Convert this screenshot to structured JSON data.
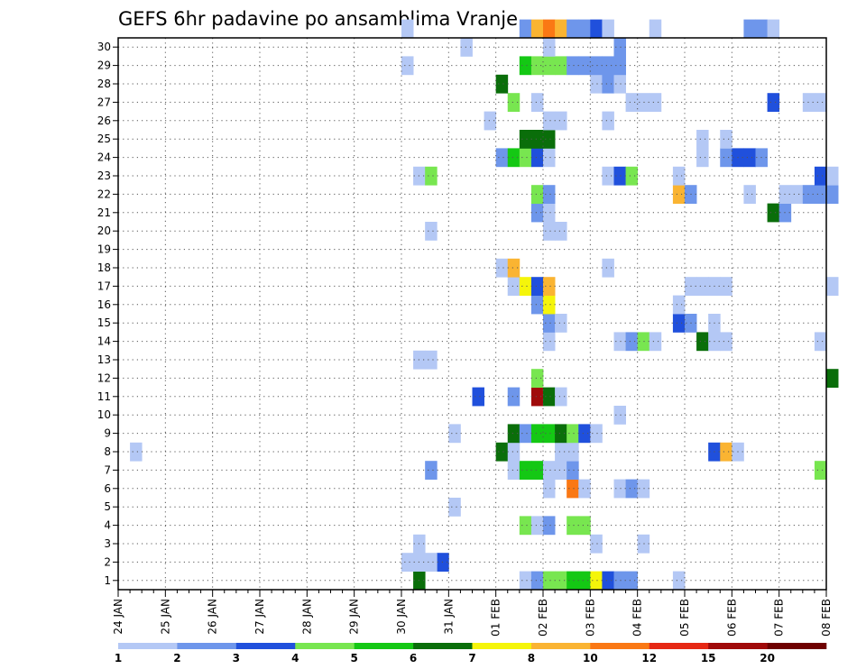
{
  "chart_data": {
    "type": "heatmap",
    "title": "GEFS 6hr padavine po ansamblima Vranje",
    "x_tick_labels": [
      "24 JAN",
      "25 JAN",
      "26 JAN",
      "27 JAN",
      "28 JAN",
      "29 JAN",
      "30 JAN",
      "31 JAN",
      "01 FEB",
      "02 FEB",
      "03 FEB",
      "04 FEB",
      "05 FEB",
      "06 FEB",
      "07 FEB",
      "08 FEB"
    ],
    "x_range_steps": [
      0,
      60
    ],
    "steps_per_day": 4,
    "y_tick_labels": [
      "1",
      "2",
      "3",
      "4",
      "5",
      "6",
      "7",
      "8",
      "9",
      "10",
      "11",
      "12",
      "13",
      "14",
      "15",
      "16",
      "17",
      "18",
      "19",
      "20",
      "21",
      "22",
      "23",
      "24",
      "25",
      "26",
      "27",
      "28",
      "29",
      "30"
    ],
    "y_range_members": [
      0,
      30
    ],
    "grid": true,
    "colorbar": {
      "placement": "bottom",
      "labels": [
        "1",
        "2",
        "3",
        "4",
        "5",
        "6",
        "7",
        "8",
        "10",
        "12",
        "15",
        "20"
      ],
      "colors": [
        "#b4c8f5",
        "#6e96eb",
        "#2050dc",
        "#78e650",
        "#14c814",
        "#0a6e0a",
        "#f5f50a",
        "#fab432",
        "#fa7814",
        "#e62814",
        "#a00a0a",
        "#6e0000"
      ]
    },
    "cells": [
      [
        34,
        0,
        0
      ],
      [
        35,
        0,
        1
      ],
      [
        36,
        0,
        3
      ],
      [
        37,
        0,
        3
      ],
      [
        38,
        0,
        4
      ],
      [
        39,
        0,
        4
      ],
      [
        40,
        0,
        6
      ],
      [
        41,
        0,
        2
      ],
      [
        42,
        0,
        1
      ],
      [
        43,
        0,
        1
      ],
      [
        47,
        0,
        0
      ],
      [
        25,
        0,
        5
      ],
      [
        24,
        1,
        0
      ],
      [
        25,
        1,
        0
      ],
      [
        27,
        1,
        2
      ],
      [
        26,
        1,
        0
      ],
      [
        25,
        2,
        0
      ],
      [
        40,
        2,
        0
      ],
      [
        44,
        2,
        0
      ],
      [
        34,
        3,
        3
      ],
      [
        35,
        3,
        0
      ],
      [
        36,
        3,
        1
      ],
      [
        38,
        3,
        3
      ],
      [
        39,
        3,
        3
      ],
      [
        28,
        4,
        0
      ],
      [
        36,
        5,
        0
      ],
      [
        38,
        5,
        8
      ],
      [
        39,
        5,
        0
      ],
      [
        42,
        5,
        0
      ],
      [
        43,
        5,
        1
      ],
      [
        44,
        5,
        0
      ],
      [
        26,
        6,
        1
      ],
      [
        33,
        6,
        0
      ],
      [
        34,
        6,
        4
      ],
      [
        35,
        6,
        4
      ],
      [
        36,
        6,
        0
      ],
      [
        37,
        6,
        0
      ],
      [
        38,
        6,
        1
      ],
      [
        59,
        6,
        3
      ],
      [
        1,
        7,
        0
      ],
      [
        32,
        7,
        5
      ],
      [
        33,
        7,
        0
      ],
      [
        37,
        7,
        0
      ],
      [
        38,
        7,
        0
      ],
      [
        50,
        7,
        2
      ],
      [
        51,
        7,
        7
      ],
      [
        52,
        7,
        0
      ],
      [
        28,
        8,
        0
      ],
      [
        33,
        8,
        5
      ],
      [
        34,
        8,
        1
      ],
      [
        35,
        8,
        4
      ],
      [
        36,
        8,
        4
      ],
      [
        37,
        8,
        5
      ],
      [
        38,
        8,
        3
      ],
      [
        39,
        8,
        2
      ],
      [
        40,
        8,
        0
      ],
      [
        42,
        9,
        0
      ],
      [
        30,
        10,
        2
      ],
      [
        33,
        10,
        1
      ],
      [
        35,
        10,
        10
      ],
      [
        36,
        10,
        5
      ],
      [
        37,
        10,
        0
      ],
      [
        35,
        11,
        3
      ],
      [
        60,
        11,
        5
      ],
      [
        25,
        12,
        0
      ],
      [
        26,
        12,
        0
      ],
      [
        36,
        13,
        0
      ],
      [
        42,
        13,
        0
      ],
      [
        43,
        13,
        1
      ],
      [
        44,
        13,
        3
      ],
      [
        45,
        13,
        0
      ],
      [
        49,
        13,
        5
      ],
      [
        50,
        13,
        0
      ],
      [
        51,
        13,
        0
      ],
      [
        59,
        13,
        0
      ],
      [
        36,
        14,
        1
      ],
      [
        37,
        14,
        0
      ],
      [
        47,
        14,
        2
      ],
      [
        48,
        14,
        1
      ],
      [
        50,
        14,
        0
      ],
      [
        35,
        15,
        1
      ],
      [
        36,
        15,
        6
      ],
      [
        47,
        15,
        0
      ],
      [
        33,
        16,
        0
      ],
      [
        34,
        16,
        6
      ],
      [
        35,
        16,
        2
      ],
      [
        36,
        16,
        7
      ],
      [
        48,
        16,
        0
      ],
      [
        49,
        16,
        0
      ],
      [
        50,
        16,
        0
      ],
      [
        51,
        16,
        0
      ],
      [
        60,
        16,
        0
      ],
      [
        32,
        17,
        0
      ],
      [
        33,
        17,
        7
      ],
      [
        41,
        17,
        0
      ],
      [
        26,
        19,
        0
      ],
      [
        36,
        19,
        0
      ],
      [
        37,
        19,
        0
      ],
      [
        35,
        20,
        1
      ],
      [
        36,
        20,
        0
      ],
      [
        55,
        20,
        5
      ],
      [
        56,
        20,
        1
      ],
      [
        35,
        21,
        3
      ],
      [
        36,
        21,
        1
      ],
      [
        47,
        21,
        7
      ],
      [
        48,
        21,
        1
      ],
      [
        53,
        21,
        0
      ],
      [
        56,
        21,
        0
      ],
      [
        57,
        21,
        0
      ],
      [
        58,
        21,
        1
      ],
      [
        59,
        21,
        1
      ],
      [
        60,
        21,
        1
      ],
      [
        25,
        22,
        0
      ],
      [
        26,
        22,
        3
      ],
      [
        41,
        22,
        0
      ],
      [
        42,
        22,
        2
      ],
      [
        43,
        22,
        3
      ],
      [
        47,
        22,
        0
      ],
      [
        59,
        22,
        2
      ],
      [
        60,
        22,
        0
      ],
      [
        32,
        23,
        1
      ],
      [
        33,
        23,
        4
      ],
      [
        34,
        23,
        3
      ],
      [
        35,
        23,
        2
      ],
      [
        36,
        23,
        0
      ],
      [
        49,
        23,
        0
      ],
      [
        51,
        23,
        1
      ],
      [
        52,
        23,
        2
      ],
      [
        53,
        23,
        2
      ],
      [
        54,
        23,
        1
      ],
      [
        34,
        24,
        5
      ],
      [
        35,
        24,
        5
      ],
      [
        36,
        24,
        5
      ],
      [
        49,
        24,
        0
      ],
      [
        51,
        24,
        0
      ],
      [
        31,
        25,
        0
      ],
      [
        36,
        25,
        0
      ],
      [
        37,
        25,
        0
      ],
      [
        41,
        25,
        0
      ],
      [
        33,
        26,
        3
      ],
      [
        35,
        26,
        0
      ],
      [
        43,
        26,
        0
      ],
      [
        44,
        26,
        0
      ],
      [
        45,
        26,
        0
      ],
      [
        55,
        26,
        2
      ],
      [
        58,
        26,
        0
      ],
      [
        59,
        26,
        0
      ],
      [
        32,
        27,
        5
      ],
      [
        40,
        27,
        0
      ],
      [
        41,
        27,
        1
      ],
      [
        42,
        27,
        0
      ],
      [
        24,
        28,
        0
      ],
      [
        34,
        28,
        4
      ],
      [
        35,
        28,
        3
      ],
      [
        36,
        28,
        3
      ],
      [
        37,
        28,
        3
      ],
      [
        38,
        28,
        1
      ],
      [
        39,
        28,
        1
      ],
      [
        40,
        28,
        1
      ],
      [
        41,
        28,
        1
      ],
      [
        42,
        28,
        1
      ],
      [
        29,
        29,
        0
      ],
      [
        36,
        29,
        0
      ],
      [
        42,
        29,
        1
      ],
      [
        24,
        30,
        0
      ],
      [
        34,
        30,
        1
      ],
      [
        35,
        30,
        7
      ],
      [
        36,
        30,
        8
      ],
      [
        37,
        30,
        7
      ],
      [
        38,
        30,
        1
      ],
      [
        39,
        30,
        1
      ],
      [
        40,
        30,
        2
      ],
      [
        41,
        30,
        0
      ],
      [
        45,
        30,
        0
      ],
      [
        53,
        30,
        1
      ],
      [
        54,
        30,
        1
      ],
      [
        55,
        30,
        0
      ]
    ]
  }
}
